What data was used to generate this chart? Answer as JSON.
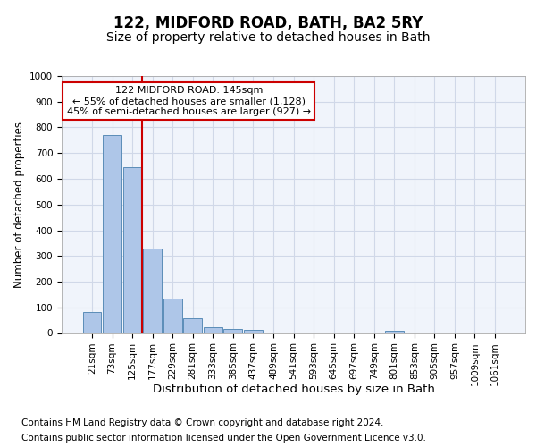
{
  "title": "122, MIDFORD ROAD, BATH, BA2 5RY",
  "subtitle": "Size of property relative to detached houses in Bath",
  "xlabel": "Distribution of detached houses by size in Bath",
  "ylabel": "Number of detached properties",
  "categories": [
    "21sqm",
    "73sqm",
    "125sqm",
    "177sqm",
    "229sqm",
    "281sqm",
    "333sqm",
    "385sqm",
    "437sqm",
    "489sqm",
    "541sqm",
    "593sqm",
    "645sqm",
    "697sqm",
    "749sqm",
    "801sqm",
    "853sqm",
    "905sqm",
    "957sqm",
    "1009sqm",
    "1061sqm"
  ],
  "bar_heights": [
    83,
    770,
    645,
    330,
    133,
    57,
    22,
    17,
    12,
    0,
    0,
    0,
    0,
    0,
    0,
    7,
    0,
    0,
    0,
    0,
    0
  ],
  "bar_color": "#aec6e8",
  "bar_edge_color": "#5b8db8",
  "vline_x": 2.5,
  "vline_color": "#cc0000",
  "annotation_text": "122 MIDFORD ROAD: 145sqm\n← 55% of detached houses are smaller (1,128)\n45% of semi-detached houses are larger (927) →",
  "annotation_box_color": "#ffffff",
  "annotation_box_edge_color": "#cc0000",
  "ylim": [
    0,
    1000
  ],
  "yticks": [
    0,
    100,
    200,
    300,
    400,
    500,
    600,
    700,
    800,
    900,
    1000
  ],
  "grid_color": "#d0d8e8",
  "background_color": "#f0f4fb",
  "footer1": "Contains HM Land Registry data © Crown copyright and database right 2024.",
  "footer2": "Contains public sector information licensed under the Open Government Licence v3.0.",
  "title_fontsize": 12,
  "subtitle_fontsize": 10,
  "xlabel_fontsize": 9.5,
  "ylabel_fontsize": 8.5,
  "tick_fontsize": 7.5,
  "footer_fontsize": 7.5,
  "annotation_fontsize": 8
}
